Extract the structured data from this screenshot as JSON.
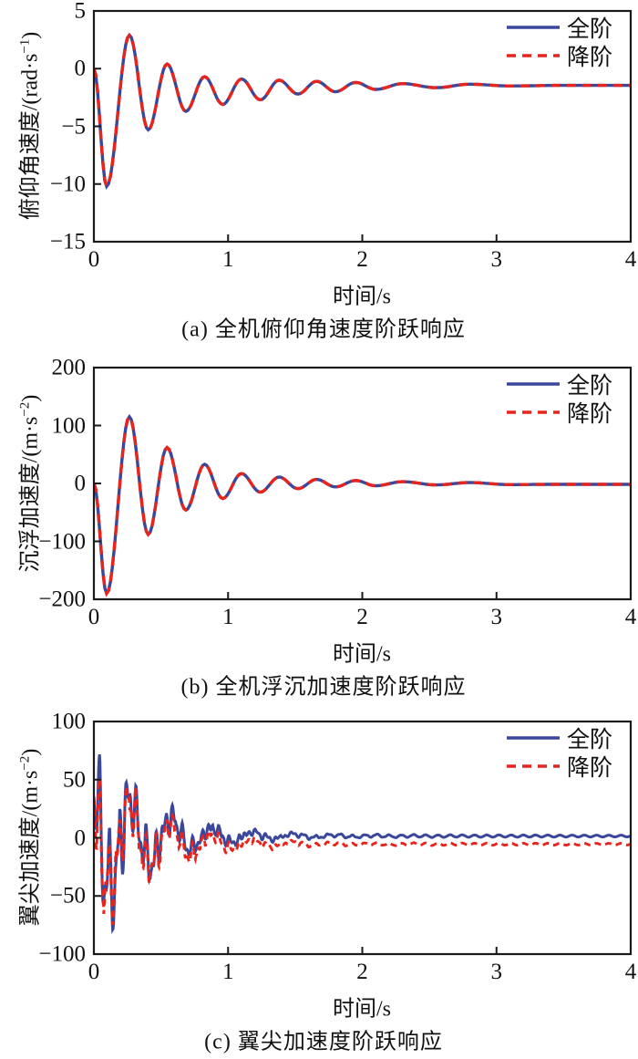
{
  "colors": {
    "full": "#3a479b",
    "reduced": "#e8251d",
    "axis": "#1a1a1a",
    "background": "#ffffff"
  },
  "legend": {
    "full_label": "全阶",
    "reduced_label": "降阶"
  },
  "chart_data": [
    {
      "type": "line",
      "caption": "(a) 全机俯仰角速度阶跃响应",
      "xlabel": "时间/s",
      "ylabel": {
        "pre": "俯仰角速度/(rad·s",
        "sup": "−1",
        "post": ")"
      },
      "xlim": [
        0,
        4
      ],
      "ylim": [
        -15,
        5
      ],
      "xticks": [
        {
          "v": 0,
          "label": "0"
        },
        {
          "v": 1,
          "label": "1"
        },
        {
          "v": 2,
          "label": "2"
        },
        {
          "v": 3,
          "label": "3"
        },
        {
          "v": 4,
          "label": "4"
        }
      ],
      "yticks": [
        {
          "v": 5,
          "label": "5"
        },
        {
          "v": 0,
          "label": "0"
        },
        {
          "v": -5,
          "label": "−5"
        },
        {
          "v": -10,
          "label": "−10"
        },
        {
          "v": -15,
          "label": "−15"
        }
      ],
      "legend": [
        {
          "name": "全阶",
          "series": "full"
        },
        {
          "name": "降阶",
          "series": "reduced"
        }
      ],
      "legend_pos": "upper right",
      "keypoints": [
        [
          0,
          0
        ],
        [
          0.095,
          -10.2
        ],
        [
          0.265,
          2.9
        ],
        [
          0.405,
          -5.3
        ],
        [
          0.545,
          0.4
        ],
        [
          0.685,
          -3.7
        ],
        [
          0.825,
          -0.7
        ],
        [
          0.96,
          -3.1
        ],
        [
          1.1,
          -0.9
        ],
        [
          1.24,
          -2.7
        ],
        [
          1.38,
          -1.0
        ],
        [
          1.52,
          -2.2
        ],
        [
          1.66,
          -1.1
        ],
        [
          1.8,
          -2.0
        ],
        [
          1.95,
          -1.2
        ],
        [
          2.1,
          -1.8
        ],
        [
          2.3,
          -1.3
        ],
        [
          2.55,
          -1.65
        ],
        [
          2.8,
          -1.35
        ],
        [
          3.1,
          -1.5
        ],
        [
          3.5,
          -1.45
        ],
        [
          4,
          -1.45
        ]
      ],
      "settle_value": -1.45
    },
    {
      "type": "line",
      "caption": "(b) 全机浮沉加速度阶跃响应",
      "xlabel": "时间/s",
      "ylabel": {
        "pre": "沉浮加速度/(m·s",
        "sup": "−2",
        "post": ")"
      },
      "xlim": [
        0,
        4
      ],
      "ylim": [
        -200,
        200
      ],
      "xticks": [
        {
          "v": 0,
          "label": "0"
        },
        {
          "v": 1,
          "label": "1"
        },
        {
          "v": 2,
          "label": "2"
        },
        {
          "v": 3,
          "label": "3"
        },
        {
          "v": 4,
          "label": "4"
        }
      ],
      "yticks": [
        {
          "v": 200,
          "label": "200"
        },
        {
          "v": 100,
          "label": "100"
        },
        {
          "v": 0,
          "label": "0"
        },
        {
          "v": -100,
          "label": "−100"
        },
        {
          "v": -200,
          "label": "−200"
        }
      ],
      "legend": [
        {
          "name": "全阶",
          "series": "full"
        },
        {
          "name": "降阶",
          "series": "reduced"
        }
      ],
      "legend_pos": "upper right",
      "keypoints": [
        [
          0,
          0
        ],
        [
          0.095,
          -190
        ],
        [
          0.265,
          115
        ],
        [
          0.405,
          -88
        ],
        [
          0.545,
          62
        ],
        [
          0.685,
          -46
        ],
        [
          0.825,
          33
        ],
        [
          0.96,
          -26
        ],
        [
          1.1,
          17
        ],
        [
          1.24,
          -15
        ],
        [
          1.38,
          11
        ],
        [
          1.52,
          -9
        ],
        [
          1.66,
          7
        ],
        [
          1.8,
          -6
        ],
        [
          1.95,
          5
        ],
        [
          2.1,
          -4
        ],
        [
          2.3,
          3
        ],
        [
          2.55,
          -2.5
        ],
        [
          2.8,
          1.5
        ],
        [
          3.1,
          -2
        ],
        [
          3.5,
          -1.5
        ],
        [
          4,
          -1.5
        ]
      ],
      "settle_value": -1.5
    },
    {
      "type": "line",
      "caption": "(c) 翼尖加速度阶跃响应",
      "xlabel": "时间/s",
      "ylabel": {
        "pre": "翼尖加速度/(m·s",
        "sup": "−2",
        "post": ")"
      },
      "xlim": [
        0,
        4
      ],
      "ylim": [
        -100,
        100
      ],
      "xticks": [
        {
          "v": 0,
          "label": "0"
        },
        {
          "v": 1,
          "label": "1"
        },
        {
          "v": 2,
          "label": "2"
        },
        {
          "v": 3,
          "label": "3"
        },
        {
          "v": 4,
          "label": "4"
        }
      ],
      "yticks": [
        {
          "v": 100,
          "label": "100"
        },
        {
          "v": 50,
          "label": "50"
        },
        {
          "v": 0,
          "label": "0"
        },
        {
          "v": -50,
          "label": "−50"
        },
        {
          "v": -100,
          "label": "−100"
        }
      ],
      "legend": [
        {
          "name": "全阶",
          "series": "full"
        },
        {
          "name": "降阶",
          "series": "reduced"
        }
      ],
      "legend_pos": "upper right",
      "observed": {
        "initial_value": 50,
        "min": {
          "t": 0.09,
          "v": -92
        },
        "max": {
          "t": 0.13,
          "v": 57
        },
        "full_settle": 1.5,
        "reduced_settle": -5.5
      },
      "model": {
        "components": [
          {
            "amp": 60,
            "freq": 3.3,
            "decay": 2.4,
            "phase": 2.1
          },
          {
            "amp": 45,
            "freq": 14.5,
            "decay": 3.0,
            "phase": 3.9
          },
          {
            "amp": 22,
            "freq": 26.0,
            "decay": 2.2,
            "phase": 0.8
          },
          {
            "amp": 2.0,
            "freq": 11.0,
            "decay": 0.25,
            "phase": 0.3
          }
        ],
        "noise": {
          "amp": 11,
          "decay": 2.6
        },
        "series": [
          {
            "name": "全阶",
            "key": "full",
            "offset_final": 1.5,
            "offset_rate": 3.0,
            "scale": 1.0,
            "detune": 0.0,
            "seed": 1
          },
          {
            "name": "降阶",
            "key": "reduced",
            "offset_final": -5.5,
            "offset_rate": 2.2,
            "scale": 0.93,
            "detune": 0.12,
            "seed": 2
          }
        ]
      }
    }
  ]
}
